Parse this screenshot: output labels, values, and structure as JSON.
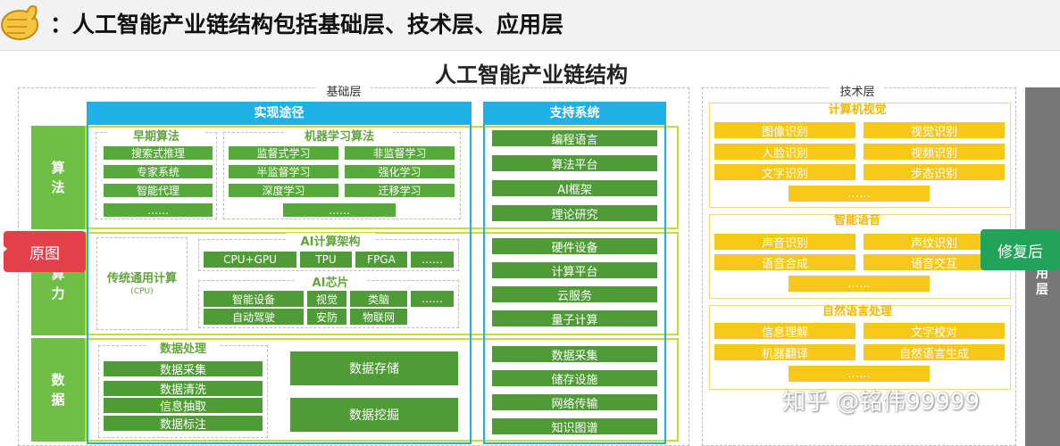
{
  "heading": "：人工智能产业链结构包括基础层、技术层、应用层",
  "diagram_title": "人工智能产业链结构",
  "base_layer": {
    "label": "基础层",
    "col_impl": "实现途径",
    "col_support": "支持系统",
    "rows": {
      "algorithm": "算法",
      "compute": "算力",
      "data": "数据"
    },
    "early_algo": {
      "title": "早期算法",
      "items": [
        "搜索式推理",
        "专家系统",
        "智能代理",
        "……"
      ]
    },
    "ml_algo": {
      "title": "机器学习算法",
      "items": [
        "监督式学习",
        "非监督学习",
        "半监督学习",
        "强化学习",
        "深度学习",
        "迁移学习",
        "……"
      ]
    },
    "algo_support": [
      "编程语言",
      "算法平台",
      "AI框架",
      "理论研究"
    ],
    "general_compute": "传统通用计算",
    "general_compute_sub": "(CPU)",
    "ai_arch": {
      "title": "AI计算架构",
      "items": [
        "CPU+GPU",
        "TPU",
        "FPGA",
        "……"
      ]
    },
    "ai_chip": {
      "title": "AI芯片",
      "items": [
        "智能设备",
        "视觉",
        "类脑",
        "……",
        "自动驾驶",
        "安防",
        "物联网"
      ]
    },
    "compute_support": [
      "硬件设备",
      "计算平台",
      "云服务",
      "量子计算"
    ],
    "data_processing": {
      "title": "数据处理",
      "items": [
        "数据采集",
        "数据清洗",
        "信息抽取",
        "数据标注"
      ]
    },
    "data_storage": "数据存储",
    "data_mining": "数据挖掘",
    "data_support": [
      "数据采集",
      "储存设施",
      "网络传输",
      "知识图谱"
    ]
  },
  "tech_layer": {
    "label": "技术层",
    "cv": {
      "title": "计算机视觉",
      "items": [
        "图像识别",
        "视觉识别",
        "人脸识别",
        "视频识别",
        "文字识别",
        "步态识别",
        "……"
      ]
    },
    "speech": {
      "title": "智能语音",
      "items": [
        "声音识别",
        "声纹识别",
        "语音合成",
        "语音交互",
        "……"
      ]
    },
    "nlp": {
      "title": "自然语言处理",
      "items": [
        "信息理解",
        "文字校对",
        "机器翻译",
        "自然语言生成",
        "……"
      ]
    }
  },
  "side_label": "用层",
  "tag_original": "原图",
  "tag_restored": "修复后",
  "watermark": "知乎 @铭伟99999",
  "colors": {
    "blue": "#1fb0e6",
    "green": "#56a93a",
    "lime": "#c7dc31",
    "yellow": "#f7c81a",
    "red": "#e4404a",
    "tag_green": "#22a35a"
  }
}
